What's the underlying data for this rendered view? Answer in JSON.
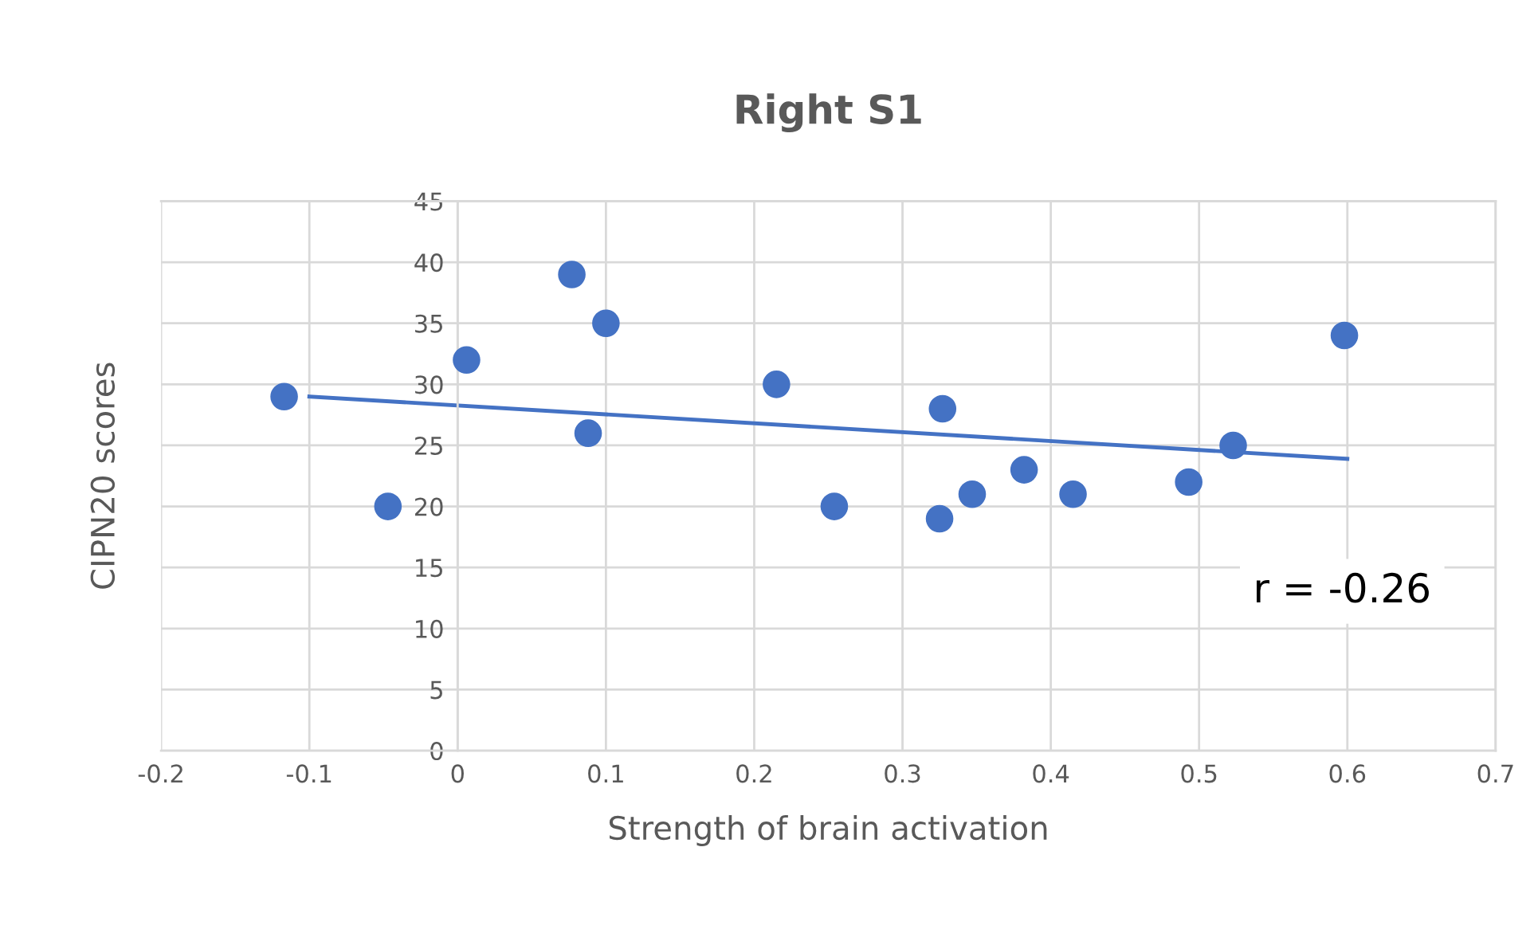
{
  "chart_data": {
    "type": "scatter",
    "title": "Right S1",
    "xlabel": "Strength of brain activation",
    "ylabel": "CIPN20 scores",
    "xlim": [
      -0.2,
      0.7
    ],
    "xticks": [
      -0.2,
      -0.1,
      0,
      0.1,
      0.2,
      0.3,
      0.4,
      0.5,
      0.6,
      0.7
    ],
    "ylim": [
      0,
      45
    ],
    "yticks": [
      0,
      5,
      10,
      15,
      20,
      25,
      30,
      35,
      40,
      45
    ],
    "grid": true,
    "series": [
      {
        "marker": "circle",
        "color": "#4472c4",
        "x": [
          -0.117,
          -0.047,
          0.006,
          0.077,
          0.1,
          0.088,
          0.215,
          0.254,
          0.327,
          0.325,
          0.347,
          0.382,
          0.415,
          0.493,
          0.523,
          0.598
        ],
        "values": [
          29,
          20,
          32,
          39,
          35,
          26,
          30,
          20,
          28,
          19,
          21,
          23,
          21,
          22,
          25,
          34
        ]
      },
      {
        "type": "line",
        "marker": "none",
        "color": "#4472c4",
        "x": [
          -0.1,
          0.6
        ],
        "values": [
          29.0,
          23.9
        ]
      }
    ],
    "annotations": [
      "r = -0.26"
    ]
  }
}
